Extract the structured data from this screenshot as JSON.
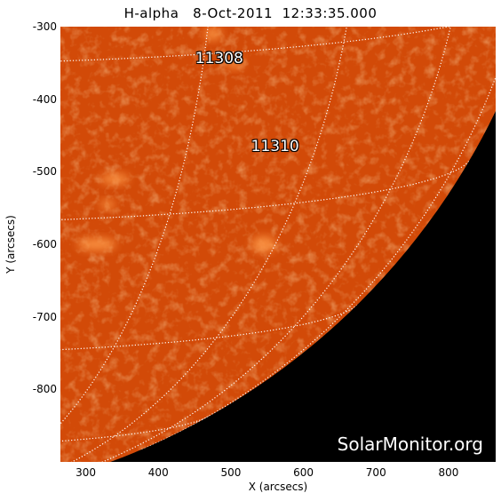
{
  "title": "H-alpha   8-Oct-2011  12:33:35.000",
  "xlabel": "X (arcsecs)",
  "ylabel": "Y (arcsecs)",
  "x_ticks": [
    "300",
    "400",
    "500",
    "600",
    "700",
    "800"
  ],
  "y_ticks": [
    "-300",
    "-400",
    "-500",
    "-600",
    "-700",
    "-800"
  ],
  "xlim": [
    265,
    865
  ],
  "ylim": [
    -900,
    -300
  ],
  "solar_radius_arcsec": 960,
  "active_regions": [
    {
      "label": "11308",
      "x": 490,
      "y": -345
    },
    {
      "label": "11310",
      "x": 567,
      "y": -467
    }
  ],
  "watermark": "SolarMonitor.org",
  "colors": {
    "disk_base": "#d24a08",
    "disk_bright": "#ff9a48",
    "space": "#000000",
    "grid": "#ffffff"
  }
}
